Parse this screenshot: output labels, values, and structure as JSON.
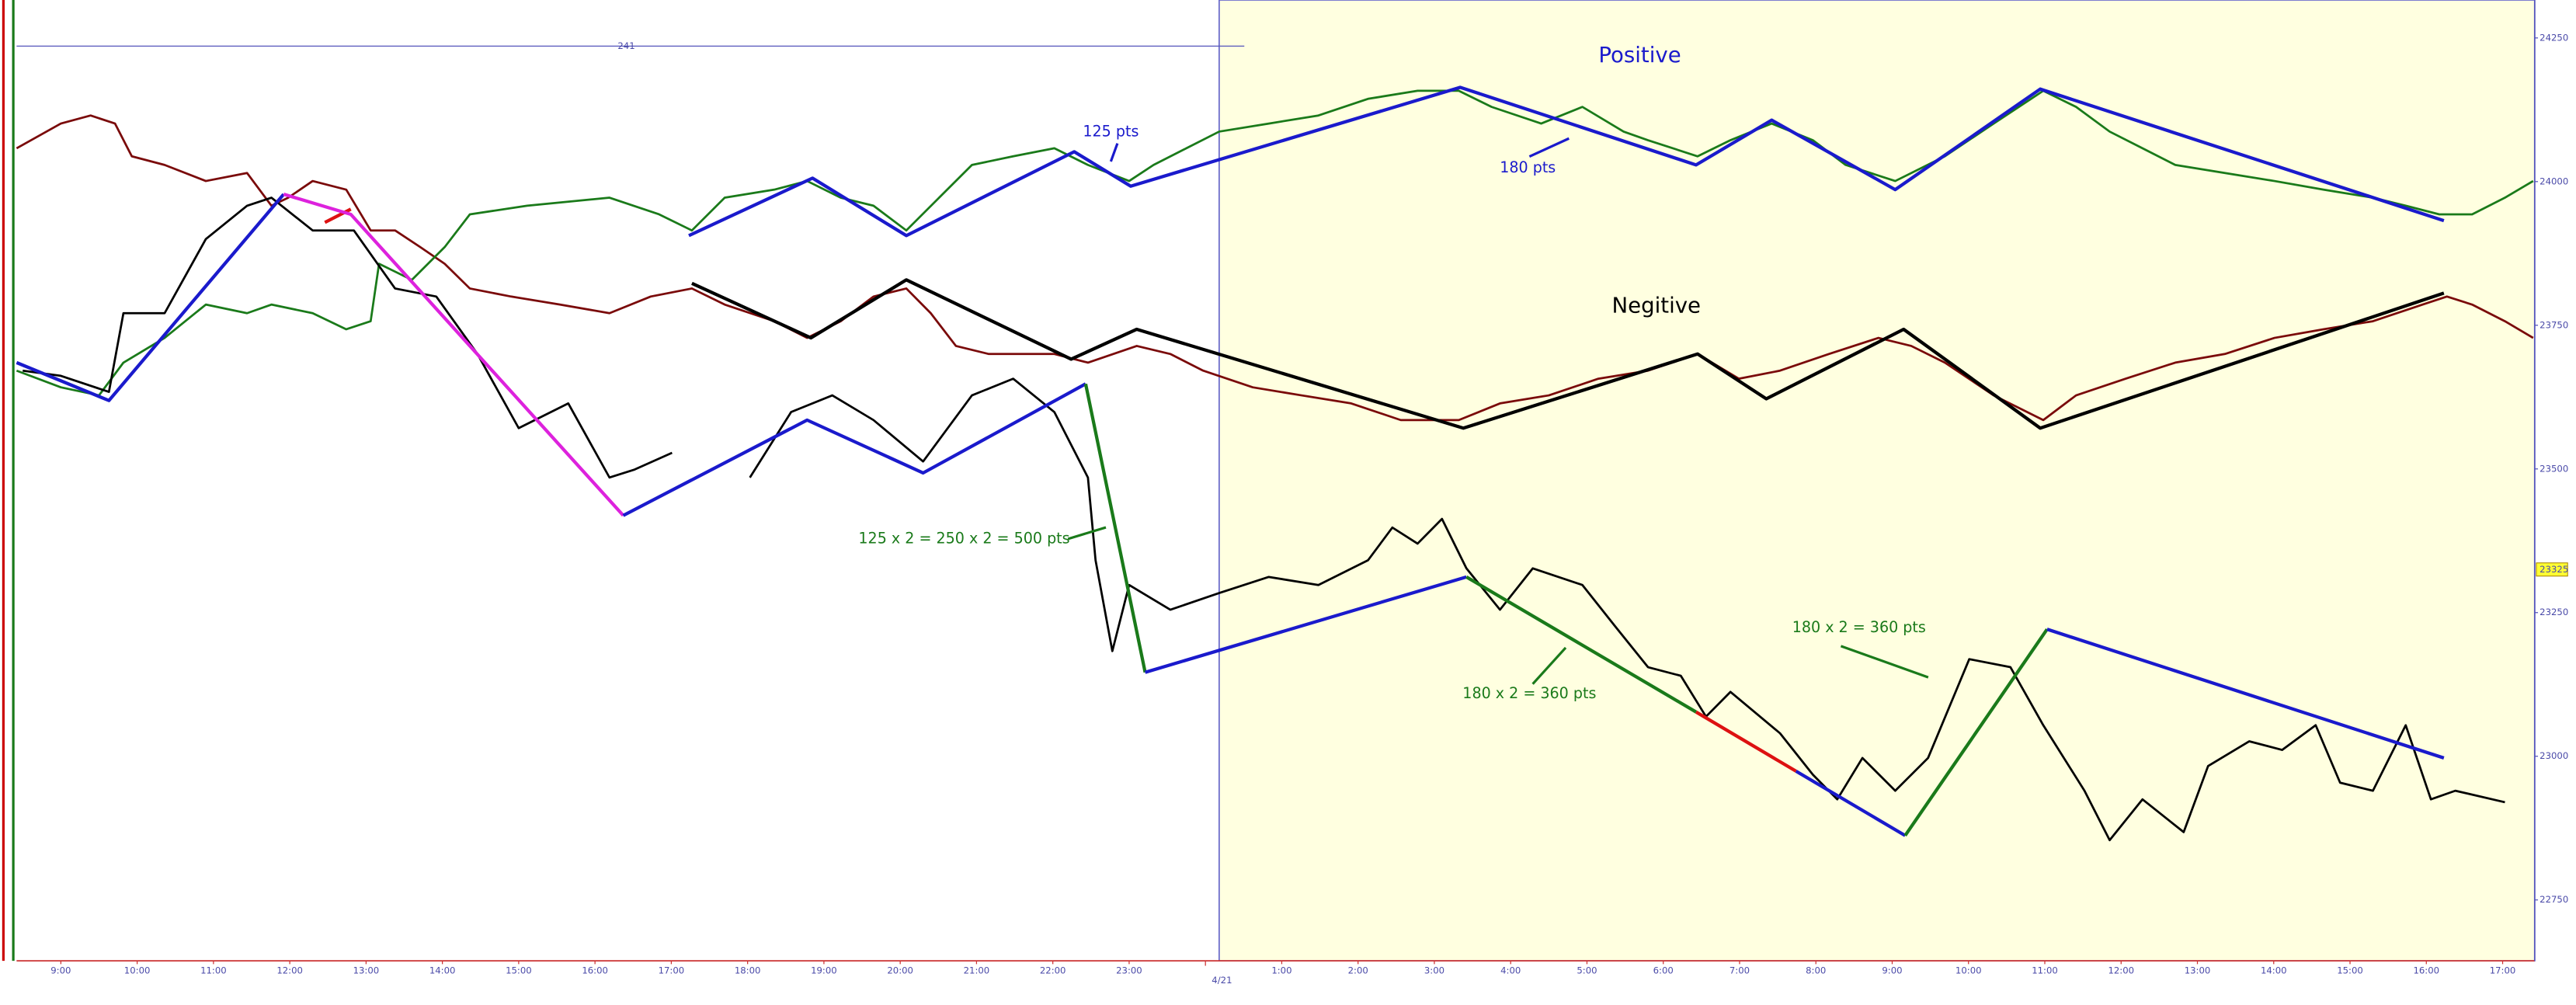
{
  "chart_data": {
    "type": "line",
    "xlim": [
      -0.58,
      32.42
    ],
    "ylim": [
      22644,
      24316
    ],
    "xticks": [
      {
        "value": 0,
        "label": "9:00"
      },
      {
        "value": 1,
        "label": "10:00"
      },
      {
        "value": 2,
        "label": "11:00"
      },
      {
        "value": 3,
        "label": "12:00"
      },
      {
        "value": 4,
        "label": "13:00"
      },
      {
        "value": 5,
        "label": "14:00"
      },
      {
        "value": 6,
        "label": "15:00"
      },
      {
        "value": 7,
        "label": "16:00"
      },
      {
        "value": 8,
        "label": "17:00"
      },
      {
        "value": 9,
        "label": "18:00"
      },
      {
        "value": 10,
        "label": "19:00"
      },
      {
        "value": 11,
        "label": "20:00"
      },
      {
        "value": 12,
        "label": "21:00"
      },
      {
        "value": 13,
        "label": "22:00"
      },
      {
        "value": 14,
        "label": "23:00"
      },
      {
        "value": 16,
        "label": "1:00"
      },
      {
        "value": 17,
        "label": "2:00"
      },
      {
        "value": 18,
        "label": "3:00"
      },
      {
        "value": 19,
        "label": "4:00"
      },
      {
        "value": 20,
        "label": "5:00"
      },
      {
        "value": 21,
        "label": "6:00"
      },
      {
        "value": 22,
        "label": "7:00"
      },
      {
        "value": 23,
        "label": "8:00"
      },
      {
        "value": 24,
        "label": "9:00"
      },
      {
        "value": 25,
        "label": "10:00"
      },
      {
        "value": 26,
        "label": "11:00"
      },
      {
        "value": 27,
        "label": "12:00"
      },
      {
        "value": 28,
        "label": "13:00"
      },
      {
        "value": 29,
        "label": "14:00"
      },
      {
        "value": 30,
        "label": "15:00"
      },
      {
        "value": 31,
        "label": "16:00"
      },
      {
        "value": 32,
        "label": "17:00"
      }
    ],
    "date_marker": {
      "value": 15,
      "label": "4/21"
    },
    "yticks": [
      22750,
      23000,
      23250,
      23500,
      23750,
      24000,
      24250
    ],
    "price_marker": 23325,
    "session_shading": {
      "x": [
        15.18,
        32.42
      ],
      "color": "#ffffe0"
    },
    "top_label": "241",
    "series": [
      {
        "color": "#7a0a0a",
        "x": [
          -0.58,
          0,
          0.39,
          0.71,
          0.93,
          1.36,
          1.9,
          2.44,
          2.76,
          2.98,
          3.3,
          3.74,
          4.06,
          4.38,
          4.71,
          5.03,
          5.36,
          5.9,
          6.54,
          7.19,
          7.73,
          8.27,
          8.7,
          9.35,
          9.78,
          10.22,
          10.65,
          11.08,
          11.4,
          11.73,
          12.16,
          12.59,
          13.02,
          13.46,
          14.1,
          14.54,
          14.97,
          15.62,
          16.26,
          16.91,
          17.56,
          18.32,
          18.86,
          19.5,
          20.15,
          20.8,
          21.45,
          21.99,
          22.53,
          23.17,
          23.82,
          24.25,
          24.69,
          25.33,
          25.98,
          26.41,
          27.06,
          27.71,
          28.36,
          29.01,
          29.65,
          30.3,
          30.95,
          31.27,
          31.6,
          32.03,
          32.4
        ],
        "values": [
          24058,
          24101,
          24115,
          24101,
          24044,
          24029,
          24001,
          24015,
          23958,
          23972,
          24001,
          23986,
          23915,
          23915,
          23886,
          23857,
          23814,
          23800,
          23786,
          23771,
          23800,
          23814,
          23786,
          23757,
          23728,
          23757,
          23800,
          23814,
          23771,
          23714,
          23700,
          23700,
          23700,
          23685,
          23714,
          23700,
          23671,
          23642,
          23628,
          23614,
          23585,
          23585,
          23614,
          23628,
          23657,
          23671,
          23700,
          23657,
          23671,
          23700,
          23728,
          23714,
          23685,
          23628,
          23585,
          23628,
          23657,
          23685,
          23700,
          23728,
          23743,
          23757,
          23786,
          23800,
          23786,
          23757,
          23728
        ]
      },
      {
        "color": "#1a7a1a",
        "x": [
          -0.58,
          0,
          0.5,
          0.82,
          1.36,
          1.9,
          2.44,
          2.76,
          3.3,
          3.74,
          4.06,
          4.17,
          4.6,
          5.03,
          5.36,
          6.11,
          7.19,
          7.84,
          8.27,
          8.7,
          9.35,
          9.78,
          10.22,
          10.65,
          11.08,
          11.51,
          11.94,
          12.48,
          13.02,
          13.46,
          14,
          14.32,
          14.75,
          15.18,
          15.83,
          16.48,
          17.13,
          17.78,
          18.32,
          18.75,
          19.4,
          19.94,
          20.48,
          20.8,
          21.45,
          21.88,
          22.42,
          22.96,
          23.39,
          24.04,
          24.69,
          25.33,
          25.98,
          26.41,
          26.85,
          27.28,
          27.71,
          28.36,
          29.01,
          29.65,
          30.3,
          30.73,
          31.17,
          31.6,
          32.03,
          32.4
        ],
        "values": [
          23671,
          23642,
          23628,
          23685,
          23728,
          23786,
          23771,
          23786,
          23771,
          23743,
          23757,
          23857,
          23829,
          23886,
          23943,
          23958,
          23972,
          23943,
          23915,
          23972,
          23986,
          24001,
          23972,
          23958,
          23915,
          23972,
          24029,
          24044,
          24058,
          24029,
          24001,
          24029,
          24058,
          24087,
          24101,
          24115,
          24144,
          24158,
          24158,
          24130,
          24101,
          24130,
          24087,
          24072,
          24044,
          24072,
          24101,
          24072,
          24029,
          24001,
          24044,
          24101,
          24158,
          24130,
          24087,
          24058,
          24029,
          24015,
          24001,
          23986,
          23972,
          23958,
          23943,
          23943,
          23972,
          24001
        ]
      },
      {
        "color": "#000000",
        "x": [
          -0.5,
          0,
          0.63,
          0.82,
          1.36,
          1.9,
          2.44,
          2.76,
          3.3,
          3.84,
          4.38,
          4.92,
          5.46,
          6,
          6.65,
          7.19,
          7.52,
          8.01,
          8.5,
          9.03,
          9.57,
          10.11,
          10.65,
          11.3,
          11.94,
          12.48,
          13.02,
          13.46,
          13.56,
          13.78,
          14,
          14.54,
          15.18,
          15.83,
          16.48,
          17.13,
          17.45,
          17.78,
          18.1,
          18.42,
          18.86,
          19.29,
          19.94,
          20.37,
          20.8,
          21.23,
          21.56,
          21.88,
          22.53,
          22.96,
          23.28,
          23.61,
          24.04,
          24.47,
          25.01,
          25.55,
          25.98,
          26.52,
          26.85,
          27.28,
          27.82,
          28.14,
          28.68,
          29.11,
          29.55,
          29.87,
          30.3,
          30.73,
          31.06,
          31.38,
          32.03
        ],
        "values": [
          23671,
          23662,
          23634,
          23771,
          23771,
          23900,
          23958,
          23972,
          23915,
          23915,
          23814,
          23800,
          23700,
          23571,
          23614,
          23485,
          23499,
          23528,
          null,
          23485,
          23599,
          23628,
          23585,
          23513,
          23628,
          23657,
          23599,
          23485,
          23341,
          23183,
          23298,
          23255,
          23284,
          23312,
          23298,
          23341,
          23398,
          23370,
          23413,
          23327,
          23255,
          23327,
          23298,
          23226,
          23155,
          23140,
          23069,
          23112,
          23040,
          22968,
          22925,
          22997,
          22940,
          22997,
          23169,
          23155,
          23054,
          22940,
          22854,
          22925,
          22868,
          22983,
          23026,
          23011,
          23054,
          22954,
          22940,
          23054,
          22925,
          22940,
          22920
        ]
      }
    ],
    "trendlines": [
      {
        "color": "#1a1acc",
        "x": [
          -0.58,
          0.63,
          2.92
        ],
        "values": [
          23685,
          23619,
          23978
        ]
      },
      {
        "color": "#dd1111",
        "x": [
          3.46,
          3.8
        ],
        "values": [
          23929,
          23952
        ]
      },
      {
        "color": "#dd22dd",
        "x": [
          2.92,
          3.8,
          7.37
        ],
        "values": [
          23978,
          23943,
          23419
        ]
      },
      {
        "color": "#1a1acc",
        "x": [
          7.37,
          9.78,
          11.3,
          13.43
        ],
        "values": [
          23419,
          23585,
          23493,
          23648
        ]
      },
      {
        "color": "#1a7a1a",
        "x": [
          13.43,
          14.21
        ],
        "values": [
          23648,
          23146
        ]
      },
      {
        "color": "#1a1acc",
        "x": [
          14.21,
          18.42
        ],
        "values": [
          23146,
          23312
        ]
      },
      {
        "color": "#1a7a1a",
        "x": [
          18.42,
          21.43
        ],
        "values": [
          23312,
          23077
        ]
      },
      {
        "color": "#dd1111",
        "x": [
          21.43,
          22.74
        ],
        "values": [
          23077,
          22974
        ]
      },
      {
        "color": "#1a1acc",
        "x": [
          22.74,
          24.17
        ],
        "values": [
          22974,
          22862
        ]
      },
      {
        "color": "#1a7a1a",
        "x": [
          24.17,
          26.03
        ],
        "values": [
          22862,
          23221
        ]
      },
      {
        "color": "#1a1acc",
        "x": [
          26.03,
          31.23
        ],
        "values": [
          23221,
          22997
        ]
      },
      {
        "color": "#1a1acc",
        "x": [
          8.23,
          9.85,
          11.08,
          13.28,
          14.02,
          18.34,
          21.43,
          22.42,
          24.04,
          25.94,
          31.23
        ],
        "values": [
          23906,
          24006,
          23906,
          24052,
          23992,
          24164,
          24029,
          24107,
          23986,
          24161,
          23932
        ]
      },
      {
        "color": "#000000",
        "x": [
          8.27,
          9.83,
          11.08,
          13.24,
          14.1,
          18.38,
          21.45,
          22.35,
          24.15,
          25.94,
          31.23
        ],
        "values": [
          23823,
          23728,
          23829,
          23691,
          23743,
          23571,
          23700,
          23622,
          23743,
          23571,
          23806
        ]
      }
    ],
    "annotations": [
      {
        "text": "Positive",
        "color": "#1a1acc"
      },
      {
        "text": "Negitive",
        "color": "#000000"
      },
      {
        "text": "125 pts",
        "color": "#1a1acc"
      },
      {
        "text": "180 pts",
        "color": "#1a1acc"
      },
      {
        "text": "125 x 2 = 250 x 2 = 500 pts",
        "color": "#1a7a1a"
      },
      {
        "text": "180 x 2 = 360 pts",
        "color": "#1a7a1a"
      },
      {
        "text": "180 x 2 = 360 pts",
        "color": "#1a7a1a"
      }
    ]
  }
}
